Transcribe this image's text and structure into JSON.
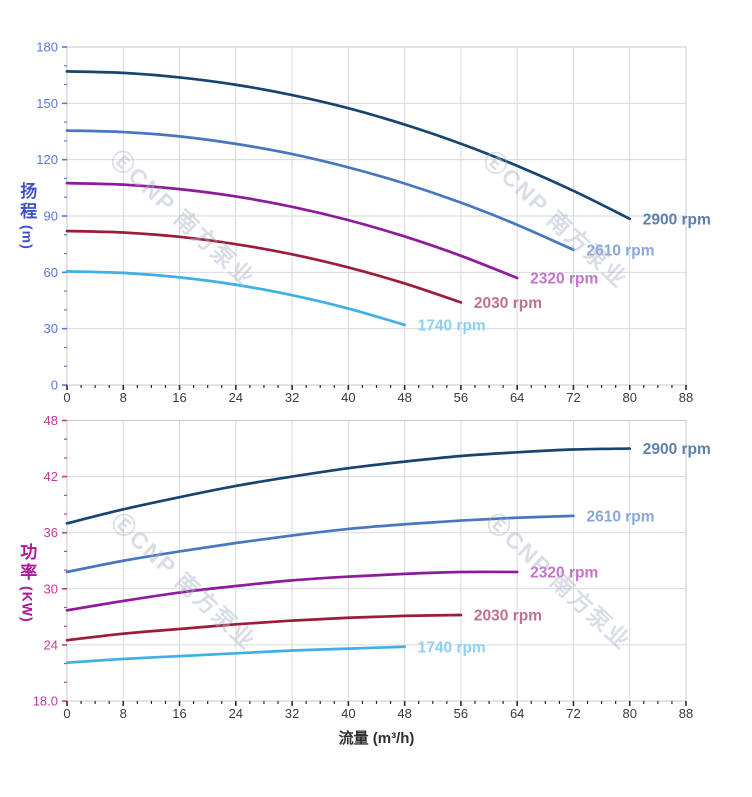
{
  "watermark": {
    "text": "ⒺCNP 南方泵业"
  },
  "axes": {
    "x_label": "流量 (m³/h)",
    "x_tick_labels": [
      "0",
      "8",
      "16",
      "24",
      "32",
      "40",
      "48",
      "56",
      "64",
      "72",
      "80",
      "88"
    ],
    "top_y_label_cn": "扬程",
    "top_y_label_unit": "(m)",
    "top_y_tick_labels": [
      "0",
      "30",
      "60",
      "90",
      "120",
      "150",
      "180"
    ],
    "bottom_y_label_cn": "功率",
    "bottom_y_label_unit": "(KW)",
    "bottom_y_tick_labels": [
      "18.0",
      "24",
      "30",
      "36",
      "42",
      "48"
    ]
  },
  "colors": {
    "grid": "#d7d9dd",
    "border": "#c6cad1",
    "x_tick_mark": "#2b2b2b",
    "x_tick_text": "#3a3a3a",
    "top_y_tick": "#5b76d8",
    "bottom_y_tick": "#c23a9f"
  },
  "chart_data": [
    {
      "type": "line",
      "name": "head-vs-flow",
      "title": "",
      "xlabel": "流量 (m³/h)",
      "ylabel": "扬程 (m)",
      "xlim": [
        0,
        88
      ],
      "ylim": [
        0,
        180
      ],
      "xtick_step": 8,
      "xminor_step": 2,
      "ytick_step": 30,
      "yminor_step": 10,
      "grid": true,
      "legend_position": "at-line-end",
      "series": [
        {
          "name": "2900 rpm",
          "rpm": 2900,
          "color": "#17456f",
          "label_color": "#5d80ab",
          "x": [
            0,
            8,
            16,
            24,
            32,
            40,
            48,
            56,
            64,
            72,
            80
          ],
          "values": [
            167,
            166.2,
            163.8,
            159.9,
            154.4,
            147.4,
            138.7,
            128.5,
            116.7,
            103.4,
            88.5
          ]
        },
        {
          "name": "2610 rpm",
          "rpm": 2610,
          "color": "#4876c1",
          "label_color": "#8aa7da",
          "x": [
            0,
            8,
            16,
            24,
            32,
            40,
            48,
            56,
            64,
            72
          ],
          "values": [
            135.5,
            134.7,
            132.4,
            128.4,
            123,
            115.9,
            107.3,
            97.1,
            85.3,
            72
          ]
        },
        {
          "name": "2320 rpm",
          "rpm": 2320,
          "color": "#8e1a9c",
          "label_color": "#c473cb",
          "x": [
            0,
            8,
            16,
            24,
            32,
            40,
            48,
            56,
            64
          ],
          "values": [
            107.5,
            106.7,
            104.3,
            100.4,
            94.9,
            87.8,
            79.1,
            68.8,
            57
          ]
        },
        {
          "name": "2030 rpm",
          "rpm": 2030,
          "color": "#9c1c3a",
          "label_color": "#bf7090",
          "x": [
            0,
            8,
            16,
            24,
            32,
            40,
            48,
            56
          ],
          "values": [
            82,
            81.2,
            78.9,
            75,
            69.6,
            62.6,
            54.1,
            44
          ]
        },
        {
          "name": "1740 rpm",
          "rpm": 1740,
          "color": "#3fb0e3",
          "label_color": "#8dd1f0",
          "x": [
            0,
            8,
            16,
            24,
            32,
            40,
            48
          ],
          "values": [
            60.5,
            59.7,
            57.3,
            53.4,
            47.8,
            40.7,
            32
          ]
        }
      ]
    },
    {
      "type": "line",
      "name": "power-vs-flow",
      "title": "",
      "xlabel": "流量 (m³/h)",
      "ylabel": "功率 (KW)",
      "xlim": [
        0,
        88
      ],
      "ylim": [
        18,
        48
      ],
      "xtick_step": 8,
      "xminor_step": 2,
      "ytick_step": 6,
      "yminor_step": 2,
      "grid": true,
      "legend_position": "at-line-end",
      "series": [
        {
          "name": "2900 rpm",
          "rpm": 2900,
          "color": "#17456f",
          "label_color": "#5d80ab",
          "x": [
            0,
            8,
            16,
            24,
            32,
            40,
            48,
            56,
            64,
            72,
            80
          ],
          "values": [
            37,
            38.5,
            39.8,
            41,
            42,
            42.9,
            43.6,
            44.2,
            44.6,
            44.9,
            45
          ]
        },
        {
          "name": "2610 rpm",
          "rpm": 2610,
          "color": "#4876c1",
          "label_color": "#8aa7da",
          "x": [
            0,
            8,
            16,
            24,
            32,
            40,
            48,
            56,
            64,
            72
          ],
          "values": [
            31.8,
            33,
            34,
            34.9,
            35.7,
            36.4,
            36.9,
            37.3,
            37.6,
            37.8
          ]
        },
        {
          "name": "2320 rpm",
          "rpm": 2320,
          "color": "#8e1a9c",
          "label_color": "#c473cb",
          "x": [
            0,
            8,
            16,
            24,
            32,
            40,
            48,
            56,
            64
          ],
          "values": [
            27.7,
            28.7,
            29.6,
            30.3,
            30.9,
            31.3,
            31.6,
            31.8,
            31.8
          ]
        },
        {
          "name": "2030 rpm",
          "rpm": 2030,
          "color": "#9c1c3a",
          "label_color": "#bf7090",
          "x": [
            0,
            8,
            16,
            24,
            32,
            40,
            48,
            56
          ],
          "values": [
            24.5,
            25.2,
            25.7,
            26.2,
            26.6,
            26.9,
            27.1,
            27.2
          ]
        },
        {
          "name": "1740 rpm",
          "rpm": 1740,
          "color": "#3fb0e3",
          "label_color": "#8dd1f0",
          "x": [
            0,
            8,
            16,
            24,
            32,
            40,
            48
          ],
          "values": [
            22.1,
            22.5,
            22.8,
            23.1,
            23.4,
            23.6,
            23.8
          ]
        }
      ]
    }
  ]
}
